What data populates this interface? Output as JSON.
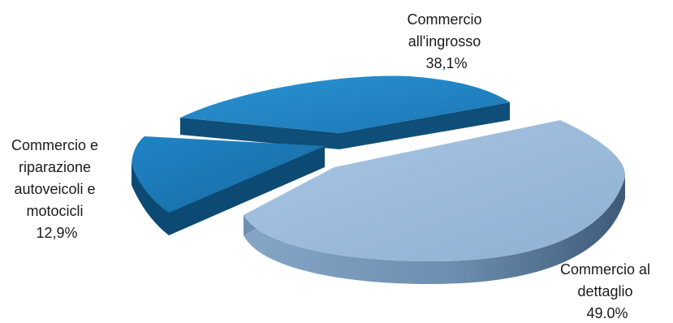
{
  "chart_data": {
    "type": "pie",
    "style": "3d-exploded",
    "title": "",
    "slices": [
      {
        "label": "Commercio al dettaglio",
        "value": 49.0,
        "display": "49.0%",
        "color": "#9ab9d9"
      },
      {
        "label": "Commercio e riparazione autoveicoli e motocicli",
        "value": 12.9,
        "display": "12,9%",
        "color": "#1c79b3"
      },
      {
        "label": "Commercio all'ingrosso",
        "value": 38.1,
        "display": "38,1%",
        "color": "#1f7fbf"
      }
    ],
    "labels": {
      "wholesale": [
        "Commercio",
        "all'ingrosso",
        "38,1%"
      ],
      "vehicles": [
        "Commercio e",
        "riparazione",
        "autoveicoli e",
        "motocicli",
        "12,9%"
      ],
      "retail": [
        "Commercio al",
        "dettaglio",
        "49.0%"
      ]
    },
    "legend": "none"
  }
}
